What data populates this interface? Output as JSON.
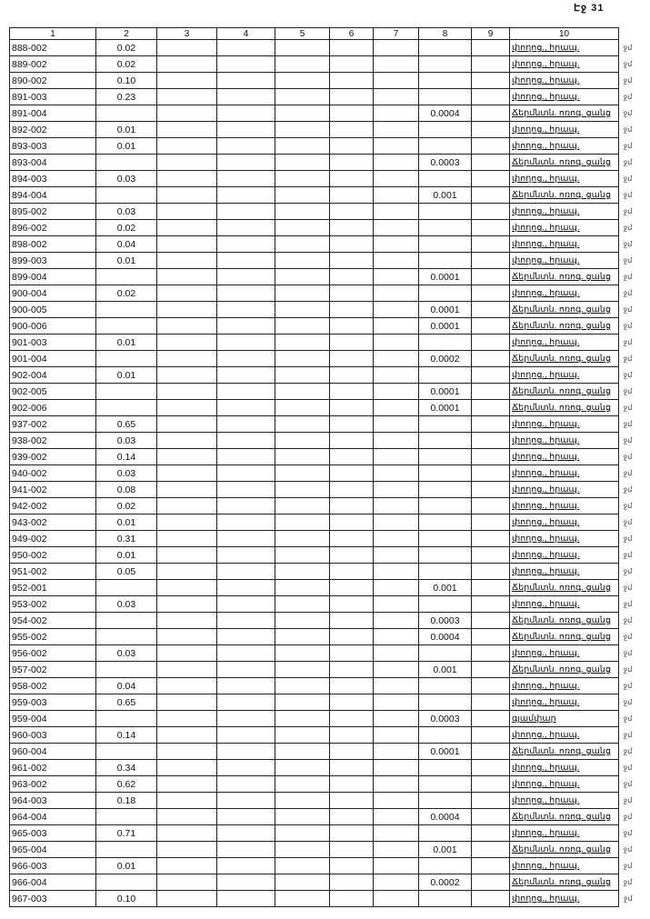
{
  "page_label": "Էջ 31",
  "headers": [
    "1",
    "2",
    "3",
    "4",
    "5",
    "6",
    "7",
    "8",
    "9",
    "10"
  ],
  "mark": "ջմ",
  "rows": [
    {
      "c1": "888-002",
      "c2": "0.02",
      "c8": "",
      "c10": "փողոց., հրապ."
    },
    {
      "c1": "889-002",
      "c2": "0.02",
      "c8": "",
      "c10": "փողոց., հրապ."
    },
    {
      "c1": "890-002",
      "c2": "0.10",
      "c8": "",
      "c10": "փողոց., հրապ."
    },
    {
      "c1": "891-003",
      "c2": "0.23",
      "c8": "",
      "c10": "փողոց., հրապ."
    },
    {
      "c1": "891-004",
      "c2": "",
      "c8": "0.0004",
      "c10": "Ճերմնտն. ոռոգ. ցանց"
    },
    {
      "c1": "892-002",
      "c2": "0.01",
      "c8": "",
      "c10": "փողոց., հրապ."
    },
    {
      "c1": "893-003",
      "c2": "0.01",
      "c8": "",
      "c10": "փողոց., հրապ."
    },
    {
      "c1": "893-004",
      "c2": "",
      "c8": "0.0003",
      "c10": "Ճերմնտն. ոռոգ. ցանց"
    },
    {
      "c1": "894-003",
      "c2": "0.03",
      "c8": "",
      "c10": "փողոց., հրապ."
    },
    {
      "c1": "894-004",
      "c2": "",
      "c8": "0.001",
      "c10": "Ճերմնտն. ոռոգ. ցանց"
    },
    {
      "c1": "895-002",
      "c2": "0.03",
      "c8": "",
      "c10": "փողոց., հրապ."
    },
    {
      "c1": "896-002",
      "c2": "0.02",
      "c8": "",
      "c10": "փողոց., հրապ."
    },
    {
      "c1": "898-002",
      "c2": "0.04",
      "c8": "",
      "c10": "փողոց., հրապ."
    },
    {
      "c1": "899-003",
      "c2": "0.01",
      "c8": "",
      "c10": "փողոց., հրապ."
    },
    {
      "c1": "899-004",
      "c2": "",
      "c8": "0.0001",
      "c10": "Ճերմնտն. ոռոգ. ցանց"
    },
    {
      "c1": "900-004",
      "c2": "0.02",
      "c8": "",
      "c10": "փողոց., հրապ."
    },
    {
      "c1": "900-005",
      "c2": "",
      "c8": "0.0001",
      "c10": "Ճերմնտն. ոռոգ. ցանց"
    },
    {
      "c1": "900-006",
      "c2": "",
      "c8": "0.0001",
      "c10": "Ճերմնտն. ոռոգ. ցանց"
    },
    {
      "c1": "901-003",
      "c2": "0.01",
      "c8": "",
      "c10": "փողոց., հրապ."
    },
    {
      "c1": "901-004",
      "c2": "",
      "c8": "0.0002",
      "c10": "Ճերմնտն. ոռոգ. ցանց"
    },
    {
      "c1": "902-004",
      "c2": "0.01",
      "c8": "",
      "c10": "փողոց., հրապ."
    },
    {
      "c1": "902-005",
      "c2": "",
      "c8": "0.0001",
      "c10": "Ճերմնտն. ոռոգ. ցանց"
    },
    {
      "c1": "902-006",
      "c2": "",
      "c8": "0.0001",
      "c10": "Ճերմնտն. ոռոգ. ցանց"
    },
    {
      "c1": "937-002",
      "c2": "0.65",
      "c8": "",
      "c10": "փողոց., հրապ."
    },
    {
      "c1": "938-002",
      "c2": "0.03",
      "c8": "",
      "c10": "փողոց., հրապ."
    },
    {
      "c1": "939-002",
      "c2": "0.14",
      "c8": "",
      "c10": "փողոց., հրապ."
    },
    {
      "c1": "940-002",
      "c2": "0.03",
      "c8": "",
      "c10": "փողոց., հրապ."
    },
    {
      "c1": "941-002",
      "c2": "0.08",
      "c8": "",
      "c10": "փողոց., հրապ."
    },
    {
      "c1": "942-002",
      "c2": "0.02",
      "c8": "",
      "c10": "փողոց., հրապ."
    },
    {
      "c1": "943-002",
      "c2": "0.01",
      "c8": "",
      "c10": "փողոց., հրապ."
    },
    {
      "c1": "949-002",
      "c2": "0.31",
      "c8": "",
      "c10": "փողոց., հրապ."
    },
    {
      "c1": "950-002",
      "c2": "0.01",
      "c8": "",
      "c10": "փողոց., հրապ."
    },
    {
      "c1": "951-002",
      "c2": "0.05",
      "c8": "",
      "c10": "փողոց., հրապ."
    },
    {
      "c1": "952-001",
      "c2": "",
      "c8": "0.001",
      "c10": "Ճերմնտն. ոռոգ. ցանց"
    },
    {
      "c1": "953-002",
      "c2": "0.03",
      "c8": "",
      "c10": "փողոց., հրապ."
    },
    {
      "c1": "954-002",
      "c2": "",
      "c8": "0.0003",
      "c10": "Ճերմնտն. ոռոգ. ցանց"
    },
    {
      "c1": "955-002",
      "c2": "",
      "c8": "0.0004",
      "c10": "Ճերմնտն. ոռոգ. ցանց"
    },
    {
      "c1": "956-002",
      "c2": "0.03",
      "c8": "",
      "c10": "փողոց., հրապ."
    },
    {
      "c1": "957-002",
      "c2": "",
      "c8": "0.001",
      "c10": "Ճերմնտն. ոռոգ. ցանց"
    },
    {
      "c1": "958-002",
      "c2": "0.04",
      "c8": "",
      "c10": "փողոց., հրապ."
    },
    {
      "c1": "959-003",
      "c2": "0.65",
      "c8": "",
      "c10": "փողոց., հրապ."
    },
    {
      "c1": "959-004",
      "c2": "",
      "c8": "0.0003",
      "c10": "գյամփար"
    },
    {
      "c1": "960-003",
      "c2": "0.14",
      "c8": "",
      "c10": "փողոց., հրապ."
    },
    {
      "c1": "960-004",
      "c2": "",
      "c8": "0.0001",
      "c10": "Ճերմնտն. ոռոգ. ցանց"
    },
    {
      "c1": "961-002",
      "c2": "0.34",
      "c8": "",
      "c10": "փողոց., հրապ."
    },
    {
      "c1": "963-002",
      "c2": "0.62",
      "c8": "",
      "c10": "փողոց., հրապ."
    },
    {
      "c1": "964-003",
      "c2": "0.18",
      "c8": "",
      "c10": "փողոց., հրապ."
    },
    {
      "c1": "964-004",
      "c2": "",
      "c8": "0.0004",
      "c10": "Ճերմնտն. ոռոգ. ցանց"
    },
    {
      "c1": "965-003",
      "c2": "0.71",
      "c8": "",
      "c10": "փողոց., հրապ."
    },
    {
      "c1": "965-004",
      "c2": "",
      "c8": "0.001",
      "c10": "Ճերմնտն. ոռոգ. ցանց"
    },
    {
      "c1": "966-003",
      "c2": "0.01",
      "c8": "",
      "c10": "փողոց., հրապ."
    },
    {
      "c1": "966-004",
      "c2": "",
      "c8": "0.0002",
      "c10": "Ճերմնտն. ոռոգ. ցանց"
    },
    {
      "c1": "967-003",
      "c2": "0.10",
      "c8": "",
      "c10": "փողոց., հրապ."
    }
  ]
}
